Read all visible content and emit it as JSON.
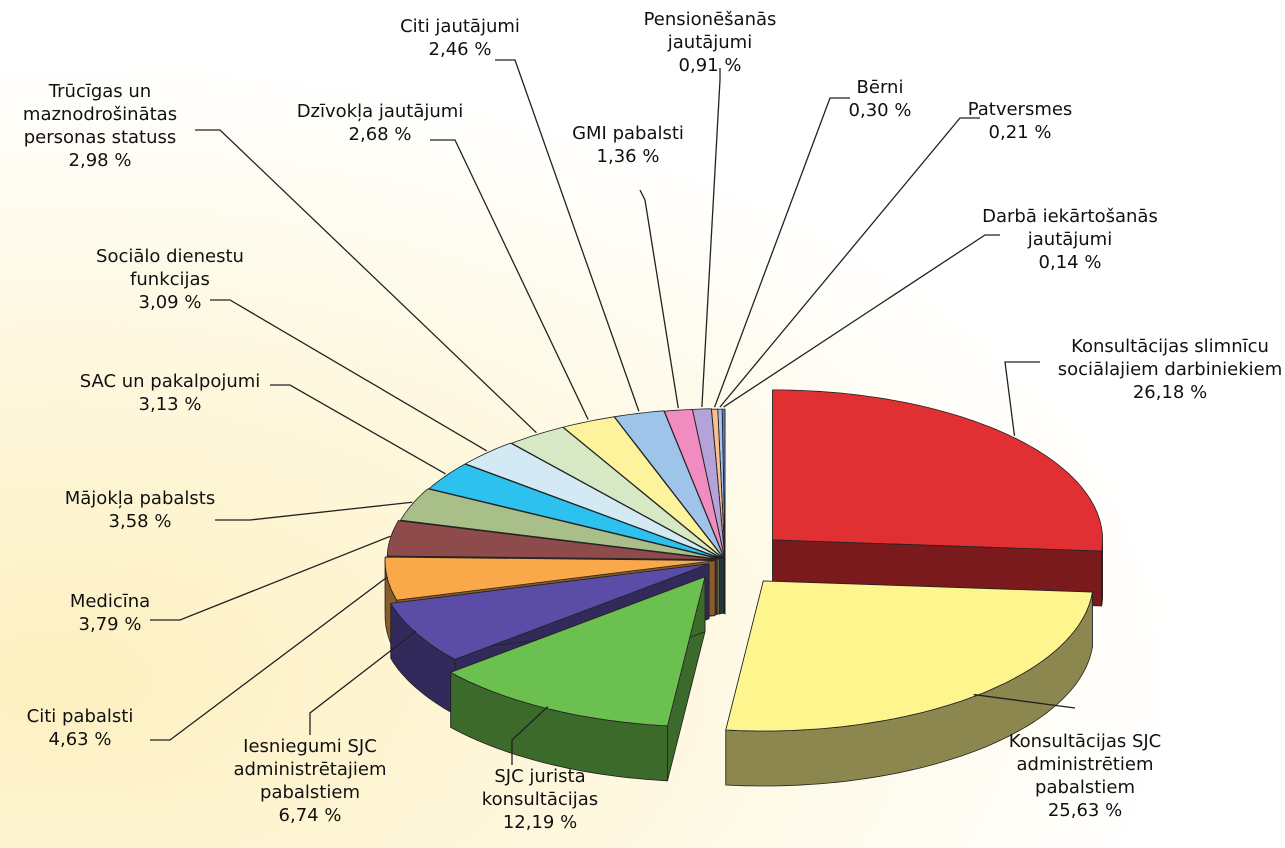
{
  "chart_data": {
    "type": "pie3d",
    "categories": [
      "Konsultācijas slimnīcu sociālajiem darbiniekiem",
      "Konsultācijas SJC administrētiem pabalstiem",
      "SJC jurista konsultācijas",
      "Iesniegumi SJC administrētajiem pabalstiem",
      "Citi pabalsti",
      "Medicīna",
      "Mājokļa pabalsts",
      "SAC un pakalpojumi",
      "Sociālo dienestu funkcijas",
      "Trūcīgas un maznodrošinātas personas statuss",
      "Dzīvokļa jautājumi",
      "Citi jautājumi",
      "GMI pabalsti",
      "Pensionēšanās jautājumi",
      "Bērni",
      "Patversmes",
      "Darbā iekārtošanās jautājumi"
    ],
    "values": [
      26.18,
      25.63,
      12.19,
      6.74,
      4.63,
      3.79,
      3.58,
      3.13,
      3.09,
      2.98,
      2.68,
      2.46,
      1.36,
      0.91,
      0.3,
      0.21,
      0.14
    ],
    "value_labels": [
      "26,18 %",
      "25,63 %",
      "12,19 %",
      "6,74 %",
      "4,63 %",
      "3,79 %",
      "3,58 %",
      "3,13 %",
      "3,09 %",
      "2,98 %",
      "2,68 %",
      "2,46 %",
      "1,36 %",
      "0,91 %",
      "0,30 %",
      "0,21 %",
      "0,14 %"
    ],
    "colors": [
      "#e03034",
      "#fff58e",
      "#6cc04f",
      "#5b4da6",
      "#f9a84a",
      "#8e4b4b",
      "#a9bf8a",
      "#2cc1ef",
      "#d3e9f3",
      "#d6e8c4",
      "#fdf39c",
      "#9ec4ea",
      "#f08cc0",
      "#b3a3d9",
      "#f8c090",
      "#a4c2f0",
      "#5e7fc2"
    ]
  }
}
